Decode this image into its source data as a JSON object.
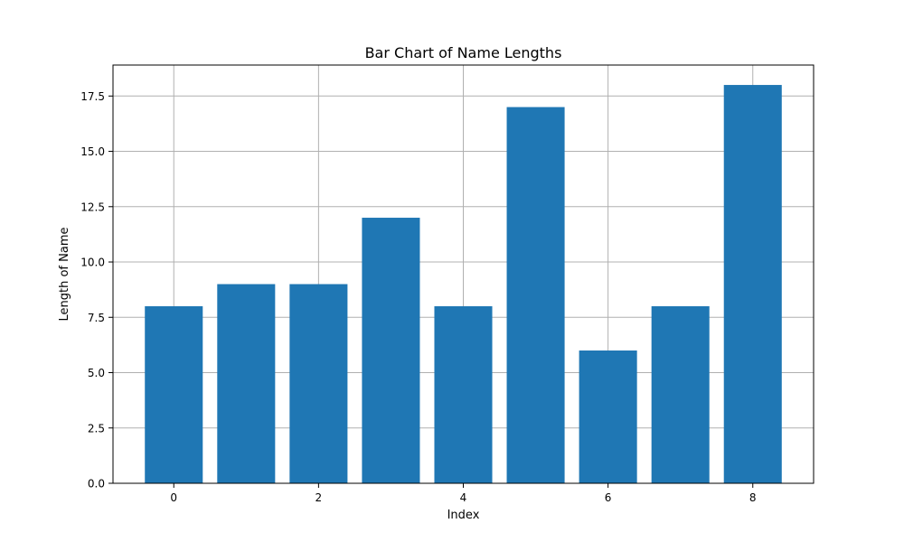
{
  "chart_data": {
    "type": "bar",
    "title": "Bar Chart of Name Lengths",
    "xlabel": "Index",
    "ylabel": "Length of Name",
    "x": [
      0,
      1,
      2,
      3,
      4,
      5,
      6,
      7,
      8
    ],
    "values": [
      8,
      9,
      9,
      12,
      8,
      17,
      6,
      8,
      18
    ],
    "xlim": [
      -0.84,
      8.84
    ],
    "ylim": [
      0,
      18.9
    ],
    "xticks": [
      0,
      2,
      4,
      6,
      8
    ],
    "xtick_labels": [
      "0",
      "2",
      "4",
      "6",
      "8"
    ],
    "yticks": [
      0,
      2.5,
      5,
      7.5,
      10,
      12.5,
      15,
      17.5
    ],
    "ytick_labels": [
      "0.0",
      "2.5",
      "5.0",
      "7.5",
      "10.0",
      "12.5",
      "15.0",
      "17.5"
    ],
    "bar_width": 0.8,
    "grid": true,
    "legend": false,
    "colors": {
      "bar": "#1f77b4",
      "grid": "#b0b0b0",
      "axes": "#000000",
      "background": "#ffffff"
    }
  }
}
